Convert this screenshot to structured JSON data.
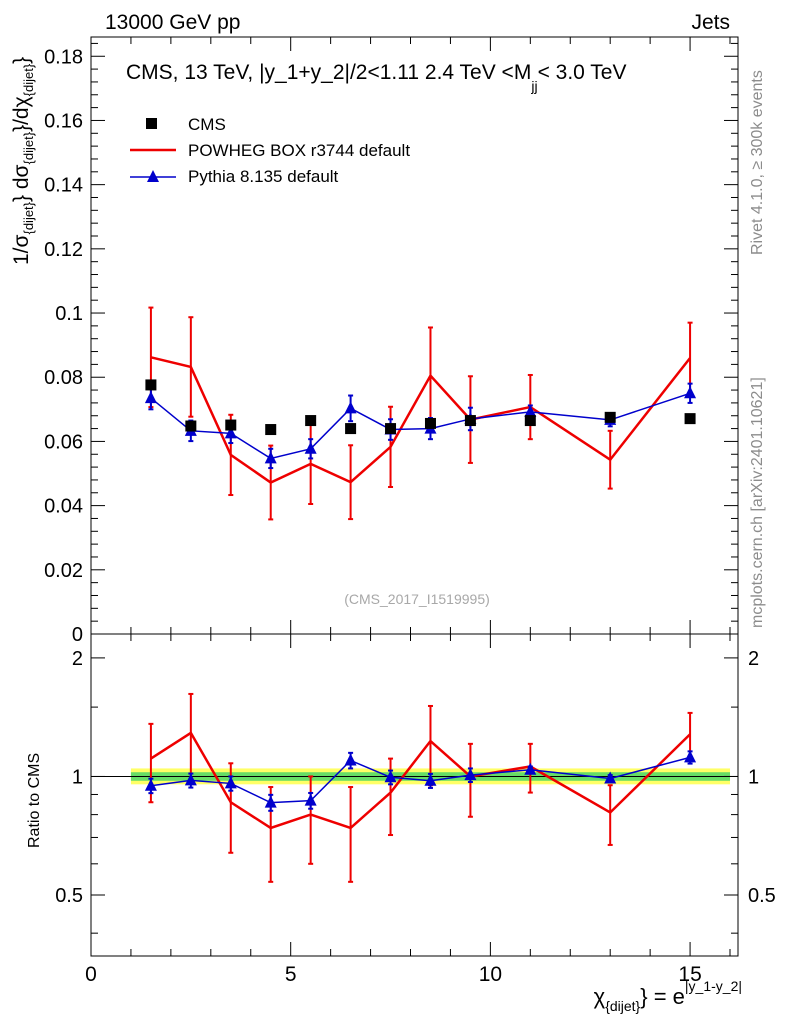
{
  "header": {
    "energy_label": "13000 GeV pp",
    "process_label": "Jets",
    "rivet_label": "Rivet 4.1.0, ≥ 300k events",
    "mcplots_label": "mcplots.cern.ch [arXiv:2401.10621]",
    "analysis_id": "(CMS_2017_I1519995)"
  },
  "colors": {
    "data": "#000000",
    "powheg": "#ee0000",
    "pythia": "#0000cc",
    "band_inner": "#66dd66",
    "band_outer": "#ffff66"
  },
  "chart_data": [
    {
      "type": "line",
      "title": "CMS, 13 TeV, |y_1+y_2|/2<1.11 2.4 TeV <M",
      "title_sub": "jj",
      "title_tail": "< 3.0 TeV",
      "ylabel": "1/σ_{dijet} dσ_{dijet}/dχ_{dijet}",
      "ylabel_main": "1/σ",
      "ylabel_sub1": "{dijet}",
      "ylabel_mid": "} dσ",
      "ylabel_sub2": "{dijet}",
      "ylabel_mid2": "}/dχ",
      "ylabel_sub3": "{dijet}",
      "ylabel_end": "}",
      "xlim": [
        0,
        16.2
      ],
      "ylim": [
        0,
        0.186
      ],
      "y_ticks": [
        0,
        0.02,
        0.04,
        0.06,
        0.08,
        0.1,
        0.12,
        0.14,
        0.16,
        0.18
      ],
      "y_tick_labels": [
        "0",
        "0.02",
        "0.04",
        "0.06",
        "0.08",
        "0.1",
        "0.12",
        "0.14",
        "0.16",
        "0.18"
      ],
      "legend": [
        "CMS",
        "POWHEG BOX r3744 default",
        "Pythia 8.135 default"
      ],
      "legend_position": "top-left",
      "series": [
        {
          "name": "CMS",
          "style": "markers",
          "x": [
            1.5,
            2.5,
            3.5,
            4.5,
            5.5,
            6.5,
            7.5,
            8.5,
            9.5,
            11.0,
            13.0,
            15.0
          ],
          "y": [
            0.0776,
            0.0648,
            0.0651,
            0.0637,
            0.0665,
            0.064,
            0.064,
            0.0656,
            0.0665,
            0.0665,
            0.0675,
            0.0671
          ]
        },
        {
          "name": "POWHEG BOX r3744 default",
          "style": "line",
          "x": [
            1.5,
            2.5,
            3.5,
            4.5,
            5.5,
            6.5,
            7.5,
            8.5,
            9.5,
            11.0,
            13.0,
            15.0
          ],
          "y": [
            0.0862,
            0.0832,
            0.0558,
            0.0472,
            0.053,
            0.0473,
            0.0583,
            0.0805,
            0.0668,
            0.0707,
            0.0543,
            0.086
          ],
          "err": [
            0.0155,
            0.0155,
            0.0125,
            0.0115,
            0.0125,
            0.0115,
            0.0125,
            0.015,
            0.0135,
            0.01,
            0.009,
            0.011
          ]
        },
        {
          "name": "Pythia 8.135 default",
          "style": "line-markers",
          "x": [
            1.5,
            2.5,
            3.5,
            4.5,
            5.5,
            6.5,
            7.5,
            8.5,
            9.5,
            11.0,
            13.0,
            15.0
          ],
          "y": [
            0.0735,
            0.0633,
            0.0625,
            0.0547,
            0.0577,
            0.0703,
            0.0637,
            0.064,
            0.067,
            0.0692,
            0.0667,
            0.075
          ],
          "err": [
            0.0035,
            0.0032,
            0.003,
            0.003,
            0.003,
            0.004,
            0.0032,
            0.0033,
            0.0035,
            0.002,
            0.002,
            0.003
          ]
        }
      ]
    },
    {
      "type": "line",
      "title": "",
      "xlabel": "χ_{dijet} = e^{|y_1-y_2|}",
      "xlabel_main": "χ",
      "xlabel_sub": "{dijet}",
      "xlabel_mid": "} = e",
      "xlabel_sup": "|y_1-y_2|",
      "ylabel": "Ratio to CMS",
      "xlim": [
        0,
        16.2
      ],
      "ylim": [
        0.35,
        2.3
      ],
      "y_scale": "log",
      "x_ticks": [
        0,
        5,
        10,
        15
      ],
      "x_tick_labels": [
        "0",
        "5",
        "10",
        "15"
      ],
      "y_ticks": [
        0.5,
        1,
        2
      ],
      "y_tick_labels": [
        "0.5",
        "1",
        "2"
      ],
      "band": {
        "x_range": [
          1.0,
          16.0
        ],
        "inner": [
          0.975,
          1.025
        ],
        "outer": [
          0.955,
          1.048
        ]
      },
      "series": [
        {
          "name": "POWHEG BOX r3744 default",
          "x": [
            1.5,
            2.5,
            3.5,
            4.5,
            5.5,
            6.5,
            7.5,
            8.5,
            9.5,
            11.0,
            13.0,
            15.0
          ],
          "y": [
            1.11,
            1.29,
            0.86,
            0.74,
            0.8,
            0.74,
            0.91,
            1.23,
            1.0,
            1.06,
            0.81,
            1.28
          ],
          "err": [
            0.25,
            0.33,
            0.22,
            0.2,
            0.2,
            0.2,
            0.2,
            0.28,
            0.21,
            0.15,
            0.14,
            0.17
          ]
        },
        {
          "name": "Pythia 8.135 default",
          "x": [
            1.5,
            2.5,
            3.5,
            4.5,
            5.5,
            6.5,
            7.5,
            8.5,
            9.5,
            11.0,
            13.0,
            15.0
          ],
          "y": [
            0.947,
            0.977,
            0.96,
            0.858,
            0.868,
            1.098,
            0.995,
            0.975,
            1.008,
            1.04,
            0.988,
            1.118
          ],
          "err": [
            0.04,
            0.04,
            0.04,
            0.04,
            0.04,
            0.05,
            0.04,
            0.04,
            0.04,
            0.02,
            0.02,
            0.04
          ]
        }
      ]
    }
  ]
}
